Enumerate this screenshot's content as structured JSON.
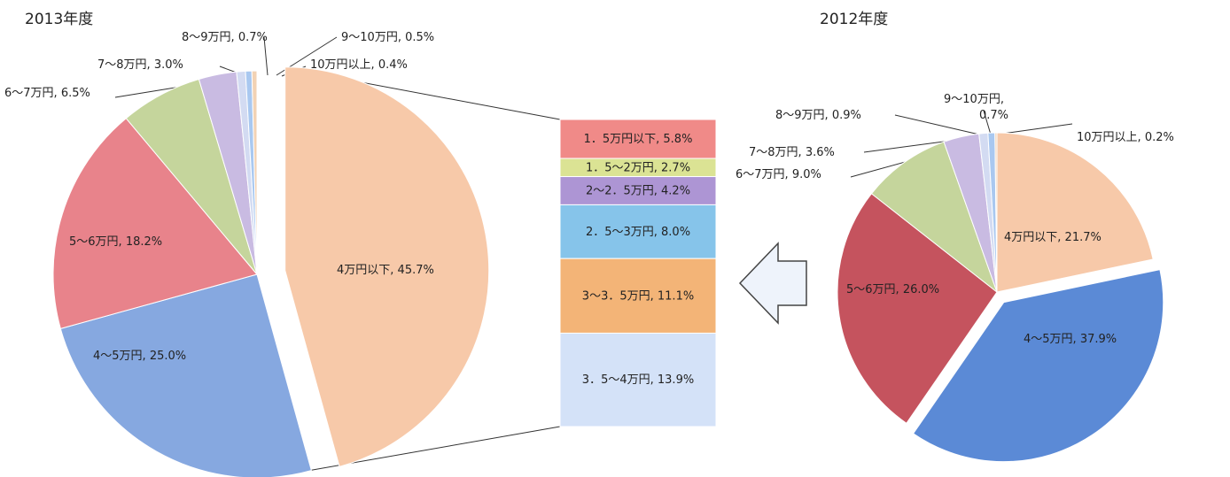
{
  "chart_data": [
    {
      "type": "pie",
      "title": "2013年度",
      "categories": [
        "4万円以下",
        "4〜5万円",
        "5〜6万円",
        "6〜7万円",
        "7〜8万円",
        "8〜9万円",
        "9〜10万円",
        "10万円以上"
      ],
      "values": [
        45.7,
        25.0,
        18.2,
        6.5,
        3.0,
        0.7,
        0.5,
        0.4
      ],
      "value_labels": [
        "45.7%",
        "25.0%",
        "18.2%",
        "6.5%",
        "3.0%",
        "0.7%",
        "0.5%",
        "0.4%"
      ],
      "colors": [
        "#f7c9a9",
        "#86a8e0",
        "#e8838b",
        "#c5d59c",
        "#c9bbe2",
        "#d3dbf2",
        "#a9c8f0",
        "#f2d2b4"
      ]
    },
    {
      "type": "bar",
      "categories": [
        "1．5万円以下",
        "1．5〜2万円",
        "2〜2．5万円",
        "2．5〜3万円",
        "3〜3．5万円",
        "3．5〜4万円"
      ],
      "values": [
        5.8,
        2.7,
        4.2,
        8.0,
        11.1,
        13.9
      ],
      "value_labels": [
        "5.8%",
        "2.7%",
        "4.2%",
        "8.0%",
        "11.1%",
        "13.9%"
      ],
      "colors": [
        "#f08a88",
        "#dbe394",
        "#ad95d4",
        "#86c4ea",
        "#f3b477",
        "#d4e2f8"
      ]
    },
    {
      "type": "pie",
      "title": "2012年度",
      "categories": [
        "4万円以下",
        "4〜5万円",
        "5〜6万円",
        "6〜7万円",
        "7〜8万円",
        "8〜9万円",
        "9〜10万円",
        "10万円以上"
      ],
      "values": [
        21.7,
        37.9,
        26.0,
        9.0,
        3.6,
        0.9,
        0.7,
        0.2
      ],
      "value_labels": [
        "21.7%",
        "37.9%",
        "26.0%",
        "9.0%",
        "3.6%",
        "0.9%",
        "0.7%",
        "0.2%"
      ],
      "colors": [
        "#f7c9a9",
        "#5b8ad6",
        "#c5535e",
        "#c5d59c",
        "#c9bbe2",
        "#d3dbf2",
        "#a9c8f0",
        "#f2d2b4"
      ]
    }
  ]
}
